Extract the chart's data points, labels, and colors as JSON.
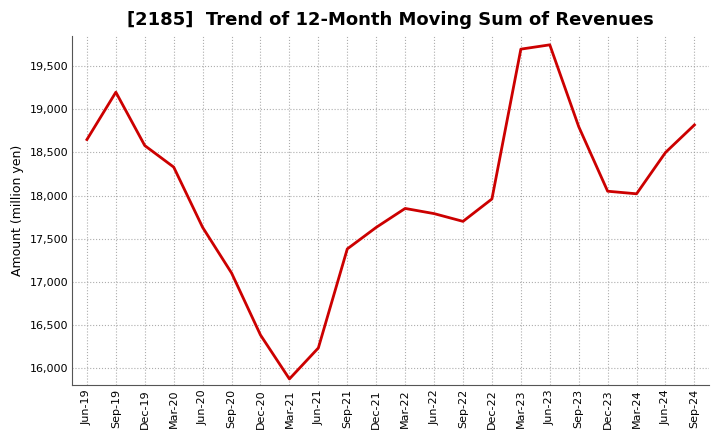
{
  "title": "[2185]  Trend of 12-Month Moving Sum of Revenues",
  "ylabel": "Amount (million yen)",
  "line_color": "#cc0000",
  "line_width": 2.0,
  "background_color": "#ffffff",
  "grid_color": "#999999",
  "x_labels": [
    "Jun-19",
    "Sep-19",
    "Dec-19",
    "Mar-20",
    "Jun-20",
    "Sep-20",
    "Dec-20",
    "Mar-21",
    "Jun-21",
    "Sep-21",
    "Dec-21",
    "Mar-22",
    "Jun-22",
    "Sep-22",
    "Dec-22",
    "Mar-23",
    "Jun-23",
    "Sep-23",
    "Dec-23",
    "Mar-24",
    "Jun-24",
    "Sep-24"
  ],
  "values": [
    18650,
    19200,
    18580,
    18330,
    17630,
    17100,
    16380,
    15870,
    16230,
    17380,
    17630,
    17850,
    17790,
    17700,
    17960,
    19700,
    19750,
    18800,
    18050,
    18020,
    18500,
    18820
  ],
  "ylim": [
    15800,
    19850
  ],
  "yticks": [
    16000,
    16500,
    17000,
    17500,
    18000,
    18500,
    19000,
    19500
  ],
  "title_fontsize": 13,
  "ylabel_fontsize": 9,
  "tick_fontsize": 8
}
